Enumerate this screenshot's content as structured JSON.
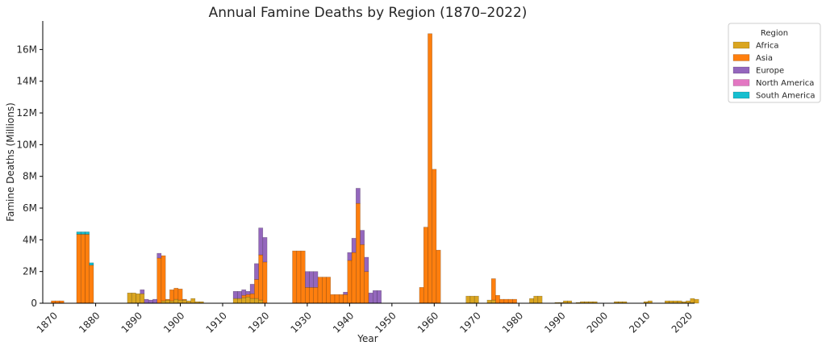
{
  "chart_data": {
    "type": "bar",
    "stacked": true,
    "title": "Annual Famine Deaths by Region (1870–2022)",
    "xlabel": "Year",
    "ylabel": "Famine Deaths (Millions)",
    "xlim": [
      1868,
      2022
    ],
    "ylim": [
      0,
      17800000
    ],
    "x_ticks": [
      1870,
      1880,
      1890,
      1900,
      1910,
      1920,
      1930,
      1940,
      1950,
      1960,
      1970,
      1980,
      1990,
      2000,
      2010,
      2020
    ],
    "y_ticks": [
      {
        "value": 0,
        "label": "0"
      },
      {
        "value": 2000000,
        "label": "2M"
      },
      {
        "value": 4000000,
        "label": "4M"
      },
      {
        "value": 6000000,
        "label": "6M"
      },
      {
        "value": 8000000,
        "label": "8M"
      },
      {
        "value": 10000000,
        "label": "10M"
      },
      {
        "value": 12000000,
        "label": "12M"
      },
      {
        "value": 14000000,
        "label": "14M"
      },
      {
        "value": 16000000,
        "label": "16M"
      }
    ],
    "grid": false,
    "legend": {
      "title": "Region",
      "placement": "outside-top-right"
    },
    "series": [
      {
        "name": "Africa",
        "color": "#DAA520",
        "points": [
          [
            1888,
            650000
          ],
          [
            1889,
            650000
          ],
          [
            1890,
            600000
          ],
          [
            1891,
            600000
          ],
          [
            1896,
            150000
          ],
          [
            1897,
            200000
          ],
          [
            1898,
            150000
          ],
          [
            1899,
            250000
          ],
          [
            1900,
            200000
          ],
          [
            1901,
            200000
          ],
          [
            1902,
            150000
          ],
          [
            1903,
            300000
          ],
          [
            1904,
            100000
          ],
          [
            1905,
            100000
          ],
          [
            1913,
            300000
          ],
          [
            1914,
            300000
          ],
          [
            1915,
            350000
          ],
          [
            1916,
            400000
          ],
          [
            1917,
            300000
          ],
          [
            1918,
            300000
          ],
          [
            1919,
            200000
          ],
          [
            1968,
            450000
          ],
          [
            1969,
            450000
          ],
          [
            1970,
            450000
          ],
          [
            1973,
            200000
          ],
          [
            1974,
            200000
          ],
          [
            1983,
            300000
          ],
          [
            1984,
            450000
          ],
          [
            1985,
            450000
          ],
          [
            1989,
            50000
          ],
          [
            1990,
            50000
          ],
          [
            1991,
            150000
          ],
          [
            1992,
            150000
          ],
          [
            1994,
            50000
          ],
          [
            1995,
            100000
          ],
          [
            1996,
            100000
          ],
          [
            1997,
            100000
          ],
          [
            1998,
            100000
          ],
          [
            2003,
            100000
          ],
          [
            2004,
            100000
          ],
          [
            2005,
            100000
          ],
          [
            2010,
            100000
          ],
          [
            2011,
            150000
          ],
          [
            2015,
            150000
          ],
          [
            2016,
            150000
          ],
          [
            2017,
            150000
          ],
          [
            2018,
            150000
          ],
          [
            2019,
            100000
          ],
          [
            2020,
            150000
          ],
          [
            2021,
            300000
          ],
          [
            2022,
            250000
          ]
        ]
      },
      {
        "name": "Asia",
        "color": "#FF7F0E",
        "points": [
          [
            1870,
            150000
          ],
          [
            1871,
            150000
          ],
          [
            1872,
            150000
          ],
          [
            1876,
            4350000
          ],
          [
            1877,
            4350000
          ],
          [
            1878,
            4350000
          ],
          [
            1879,
            2400000
          ],
          [
            1895,
            2850000
          ],
          [
            1896,
            2850000
          ],
          [
            1897,
            50000
          ],
          [
            1898,
            700000
          ],
          [
            1899,
            700000
          ],
          [
            1900,
            700000
          ],
          [
            1901,
            50000
          ],
          [
            1915,
            150000
          ],
          [
            1916,
            150000
          ],
          [
            1917,
            300000
          ],
          [
            1918,
            1200000
          ],
          [
            1919,
            2850000
          ],
          [
            1920,
            2600000
          ],
          [
            1927,
            3300000
          ],
          [
            1928,
            3300000
          ],
          [
            1929,
            3300000
          ],
          [
            1930,
            1000000
          ],
          [
            1931,
            1000000
          ],
          [
            1932,
            1000000
          ],
          [
            1933,
            1650000
          ],
          [
            1934,
            1650000
          ],
          [
            1935,
            1650000
          ],
          [
            1936,
            550000
          ],
          [
            1937,
            550000
          ],
          [
            1938,
            550000
          ],
          [
            1939,
            550000
          ],
          [
            1940,
            2700000
          ],
          [
            1941,
            3200000
          ],
          [
            1942,
            6300000
          ],
          [
            1943,
            3700000
          ],
          [
            1944,
            2000000
          ],
          [
            1957,
            1000000
          ],
          [
            1958,
            4800000
          ],
          [
            1959,
            17000000
          ],
          [
            1960,
            8450000
          ],
          [
            1961,
            3350000
          ],
          [
            1974,
            1350000
          ],
          [
            1975,
            500000
          ],
          [
            1976,
            250000
          ],
          [
            1977,
            250000
          ],
          [
            1978,
            250000
          ],
          [
            1979,
            250000
          ]
        ]
      },
      {
        "name": "Europe",
        "color": "#9467BD",
        "points": [
          [
            1891,
            250000
          ],
          [
            1892,
            250000
          ],
          [
            1893,
            200000
          ],
          [
            1894,
            250000
          ],
          [
            1895,
            300000
          ],
          [
            1913,
            450000
          ],
          [
            1914,
            450000
          ],
          [
            1915,
            350000
          ],
          [
            1916,
            200000
          ],
          [
            1917,
            600000
          ],
          [
            1918,
            1000000
          ],
          [
            1919,
            1700000
          ],
          [
            1920,
            1550000
          ],
          [
            1930,
            1000000
          ],
          [
            1931,
            1000000
          ],
          [
            1932,
            1000000
          ],
          [
            1939,
            150000
          ],
          [
            1940,
            500000
          ],
          [
            1941,
            900000
          ],
          [
            1942,
            950000
          ],
          [
            1943,
            900000
          ],
          [
            1944,
            900000
          ],
          [
            1945,
            650000
          ],
          [
            1946,
            800000
          ],
          [
            1947,
            800000
          ]
        ]
      },
      {
        "name": "North America",
        "color": "#E377C2",
        "points": []
      },
      {
        "name": "South America",
        "color": "#17BECF",
        "points": [
          [
            1876,
            150000
          ],
          [
            1877,
            150000
          ],
          [
            1878,
            150000
          ],
          [
            1879,
            150000
          ]
        ]
      }
    ]
  }
}
